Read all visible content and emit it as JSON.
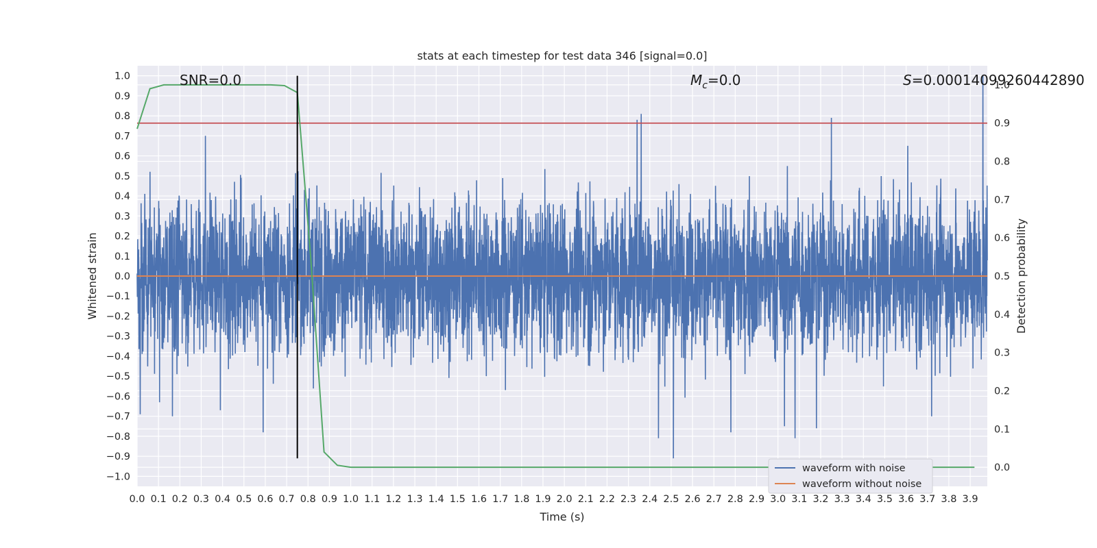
{
  "chart_data": {
    "type": "line",
    "title": "stats at each timestep for test data 346 [signal=0.0]",
    "xlabel": "Time (s)",
    "ylabel": "Whitened strain",
    "y2label": "Detection probability",
    "xlim": [
      0.0,
      3.98
    ],
    "ylim": [
      -1.05,
      1.05
    ],
    "y2lim": [
      -0.05,
      1.05
    ],
    "x_ticks": [
      "0.0",
      "0.1",
      "0.2",
      "0.3",
      "0.4",
      "0.5",
      "0.6",
      "0.7",
      "0.8",
      "0.9",
      "1.0",
      "1.1",
      "1.2",
      "1.3",
      "1.4",
      "1.5",
      "1.6",
      "1.7",
      "1.8",
      "1.9",
      "2.0",
      "2.1",
      "2.2",
      "2.3",
      "2.4",
      "2.5",
      "2.6",
      "2.7",
      "2.8",
      "2.9",
      "3.0",
      "3.1",
      "3.2",
      "3.3",
      "3.4",
      "3.5",
      "3.6",
      "3.7",
      "3.8",
      "3.9"
    ],
    "y_ticks": [
      "1.0",
      "0.9",
      "0.8",
      "0.7",
      "0.6",
      "0.5",
      "0.4",
      "0.3",
      "0.2",
      "0.1",
      "0.0",
      "−0.1",
      "−0.2",
      "−0.3",
      "−0.4",
      "−0.5",
      "−0.6",
      "−0.7",
      "−0.8",
      "−0.9",
      "−1.0"
    ],
    "y2_ticks": [
      "1.0",
      "0.9",
      "0.8",
      "0.7",
      "0.6",
      "0.5",
      "0.4",
      "0.3",
      "0.2",
      "0.1",
      "0.0"
    ],
    "grid": true,
    "legend_placement": "lower-right",
    "series": [
      {
        "name": "waveform with noise",
        "axis": "left",
        "color": "#4c72b0",
        "description_samples": 4096,
        "sigma": 0.19,
        "extremes": [
          {
            "x": 0.015,
            "y": -0.69
          },
          {
            "x": 0.105,
            "y": -0.63
          },
          {
            "x": 0.165,
            "y": -0.7
          },
          {
            "x": 0.32,
            "y": 0.7
          },
          {
            "x": 0.39,
            "y": -0.67
          },
          {
            "x": 0.59,
            "y": -0.78
          },
          {
            "x": 2.34,
            "y": 0.78
          },
          {
            "x": 2.36,
            "y": 0.81
          },
          {
            "x": 2.44,
            "y": -0.81
          },
          {
            "x": 2.51,
            "y": -0.91
          },
          {
            "x": 2.78,
            "y": -0.78
          },
          {
            "x": 3.03,
            "y": -0.75
          },
          {
            "x": 3.08,
            "y": -0.81
          },
          {
            "x": 3.18,
            "y": -0.76
          },
          {
            "x": 3.25,
            "y": 0.79
          },
          {
            "x": 3.72,
            "y": -0.7
          },
          {
            "x": 3.96,
            "y": 1.0
          }
        ]
      },
      {
        "name": "waveform without noise",
        "axis": "left",
        "color": "#dd8452",
        "x": [
          0.0,
          3.98
        ],
        "y": [
          0.0,
          0.0
        ]
      },
      {
        "name": "",
        "axis": "right",
        "color": "#55a868",
        "x": [
          0.0,
          0.06,
          0.125,
          0.25,
          0.375,
          0.5,
          0.625,
          0.69,
          0.75,
          0.8125,
          0.875,
          0.9375,
          1.0,
          1.25,
          1.5,
          2.0,
          2.5,
          3.0,
          3.5,
          3.92
        ],
        "y": [
          0.885,
          0.99,
          1.0,
          1.0,
          1.0,
          1.0,
          1.0,
          0.998,
          0.98,
          0.55,
          0.04,
          0.005,
          0.0,
          0.0,
          0.0,
          0.0,
          0.0,
          0.0,
          0.0,
          0.0
        ]
      },
      {
        "name": "",
        "axis": "right",
        "color": "#c44e52",
        "x": [
          0.0,
          3.98
        ],
        "y": [
          0.9,
          0.9
        ]
      }
    ],
    "vline": {
      "x": 0.75,
      "ymin": -0.91,
      "ymax": 1.0,
      "color": "#000000"
    },
    "annotations": {
      "snr": "SNR=0.0",
      "mc_symbol": "M",
      "mc_sub": "c",
      "mc_value": "=0.0",
      "s_symbol": "S",
      "s_value": "=0.00014099260442890"
    }
  }
}
